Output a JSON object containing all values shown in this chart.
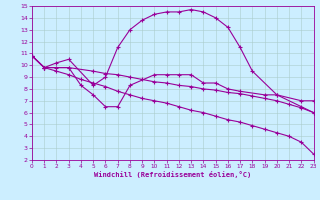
{
  "bg_color": "#cceeff",
  "line_color": "#990099",
  "grid_color": "#aacccc",
  "xlabel": "Windchill (Refroidissement éolien,°C)",
  "xlim": [
    0,
    23
  ],
  "ylim": [
    2,
    15
  ],
  "xticks": [
    0,
    1,
    2,
    3,
    4,
    5,
    6,
    7,
    8,
    9,
    10,
    11,
    12,
    13,
    14,
    15,
    16,
    17,
    18,
    19,
    20,
    21,
    22,
    23
  ],
  "yticks": [
    2,
    3,
    4,
    5,
    6,
    7,
    8,
    9,
    10,
    11,
    12,
    13,
    14,
    15
  ],
  "series1_x": [
    0,
    1,
    2,
    3,
    5,
    6,
    7,
    8,
    9,
    10,
    11,
    12,
    13,
    14,
    15,
    16,
    17,
    18,
    20,
    22,
    23
  ],
  "series1_y": [
    10.8,
    9.8,
    10.2,
    10.5,
    8.3,
    9.0,
    11.5,
    13.0,
    13.8,
    14.3,
    14.5,
    14.5,
    14.7,
    14.5,
    14.0,
    13.2,
    11.5,
    9.5,
    7.5,
    6.5,
    6.0
  ],
  "series2_x": [
    0,
    1,
    3,
    4,
    5,
    6,
    7,
    8,
    10,
    11,
    12,
    13,
    14,
    15,
    16,
    17,
    19,
    20,
    22,
    23
  ],
  "series2_y": [
    10.8,
    9.8,
    9.8,
    8.3,
    7.5,
    6.5,
    6.5,
    8.3,
    9.2,
    9.2,
    9.2,
    9.2,
    8.5,
    8.5,
    8.0,
    7.8,
    7.5,
    7.5,
    7.0,
    7.0
  ],
  "series3_x": [
    0,
    1,
    2,
    3,
    5,
    6,
    7,
    8,
    9,
    10,
    11,
    12,
    13,
    14,
    15,
    16,
    17,
    18,
    19,
    20,
    21,
    22,
    23
  ],
  "series3_y": [
    10.8,
    9.8,
    9.8,
    9.8,
    9.5,
    9.3,
    9.2,
    9.0,
    8.8,
    8.6,
    8.5,
    8.3,
    8.2,
    8.0,
    7.9,
    7.7,
    7.6,
    7.4,
    7.2,
    7.0,
    6.7,
    6.4,
    6.0
  ],
  "series4_x": [
    0,
    1,
    2,
    3,
    4,
    5,
    6,
    7,
    8,
    9,
    10,
    11,
    12,
    13,
    14,
    15,
    16,
    17,
    18,
    19,
    20,
    21,
    22,
    23
  ],
  "series4_y": [
    10.8,
    9.8,
    9.5,
    9.2,
    8.8,
    8.5,
    8.2,
    7.8,
    7.5,
    7.2,
    7.0,
    6.8,
    6.5,
    6.2,
    6.0,
    5.7,
    5.4,
    5.2,
    4.9,
    4.6,
    4.3,
    4.0,
    3.5,
    2.5
  ]
}
